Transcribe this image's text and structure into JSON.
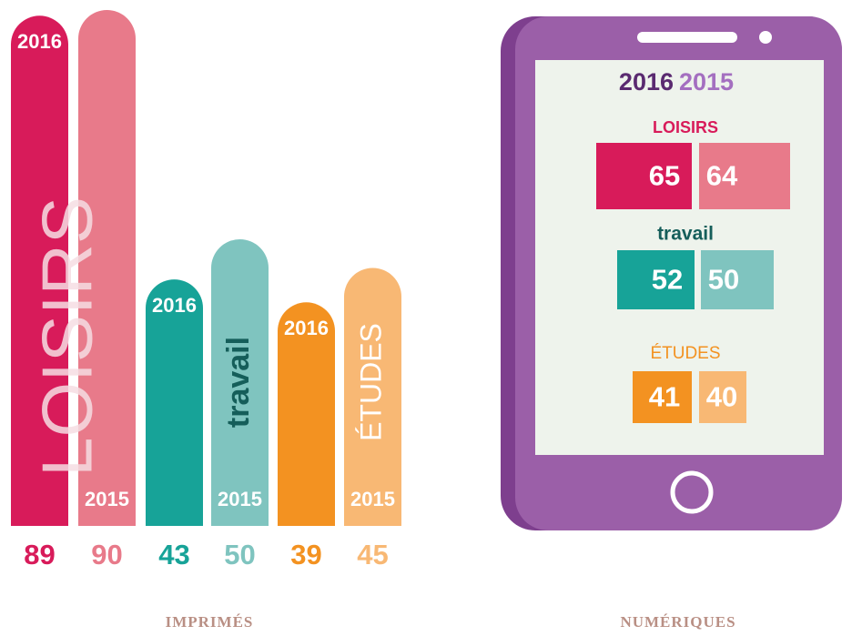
{
  "print": {
    "label": "IMPRIMÉS",
    "groups": [
      {
        "name": "LOISIRS",
        "years": [
          "2016",
          "2015"
        ],
        "values": [
          89,
          90
        ],
        "colors": [
          "#d81b5a",
          "#e87a8a"
        ],
        "name_color": "#f6dde3"
      },
      {
        "name": "travail",
        "years": [
          "2016",
          "2015"
        ],
        "values": [
          43,
          50
        ],
        "colors": [
          "#17a398",
          "#7fc4bf"
        ],
        "name_color": "#155e5a"
      },
      {
        "name": "ÉTUDES",
        "years": [
          "2016",
          "2015"
        ],
        "values": [
          39,
          45
        ],
        "colors": [
          "#f39221",
          "#f8b874"
        ],
        "name_color": "#ffffff"
      }
    ]
  },
  "digital": {
    "label": "NUMÉRIQUES",
    "years": [
      "2016",
      "2015"
    ],
    "year_colors": [
      "#5a2a70",
      "#a46fc0"
    ],
    "groups": [
      {
        "name": "LOISIRS",
        "values": [
          65,
          64
        ],
        "colors": [
          "#d81b5a",
          "#e87a8a"
        ],
        "name_color": "#d81b5a"
      },
      {
        "name": "travail",
        "values": [
          52,
          50
        ],
        "colors": [
          "#17a398",
          "#7fc4bf"
        ],
        "name_color": "#155e5a"
      },
      {
        "name": "ÉTUDES",
        "values": [
          41,
          40
        ],
        "colors": [
          "#f39221",
          "#f8b874"
        ],
        "name_color": "#f39221"
      }
    ]
  }
}
